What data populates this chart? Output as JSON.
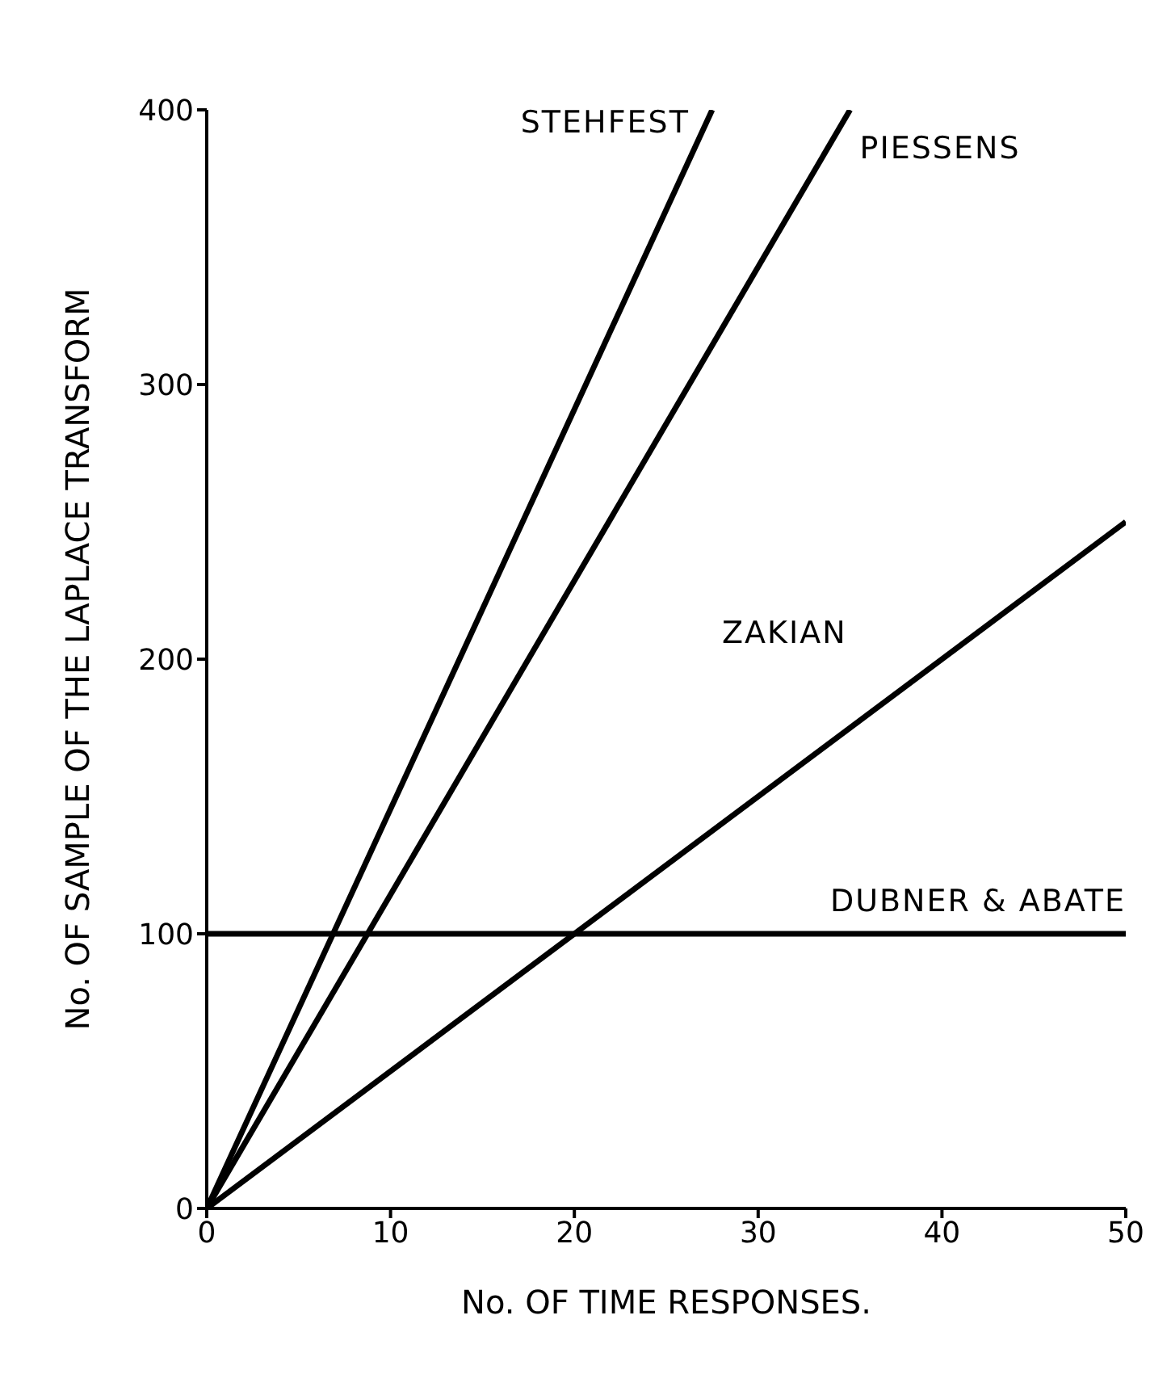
{
  "chart_data": {
    "type": "line",
    "xlabel": "No. OF TIME RESPONSES.",
    "ylabel": "No. OF SAMPLE OF THE LAPLACE TRANSFORM",
    "series": [
      {
        "name": "STEHFEST",
        "color": "#000000",
        "x": [
          0,
          27.5
        ],
        "values": [
          0,
          400
        ]
      },
      {
        "name": "PIESSENS",
        "color": "#000000",
        "x": [
          0,
          35
        ],
        "values": [
          0,
          400
        ]
      },
      {
        "name": "ZAKIAN",
        "color": "#000000",
        "x": [
          0,
          50
        ],
        "values": [
          0,
          250
        ]
      },
      {
        "name": "DUBNER & ABATE",
        "color": "#000000",
        "x": [
          0,
          50
        ],
        "values": [
          100,
          100
        ]
      }
    ],
    "xlim": [
      0,
      50
    ],
    "xticks": [
      0,
      10,
      20,
      30,
      40,
      50
    ],
    "ylim": [
      0,
      400
    ],
    "yticks": [
      0,
      100,
      200,
      300,
      400
    ],
    "grid": false,
    "legend": false,
    "marker": "none",
    "line_style": "solid"
  }
}
